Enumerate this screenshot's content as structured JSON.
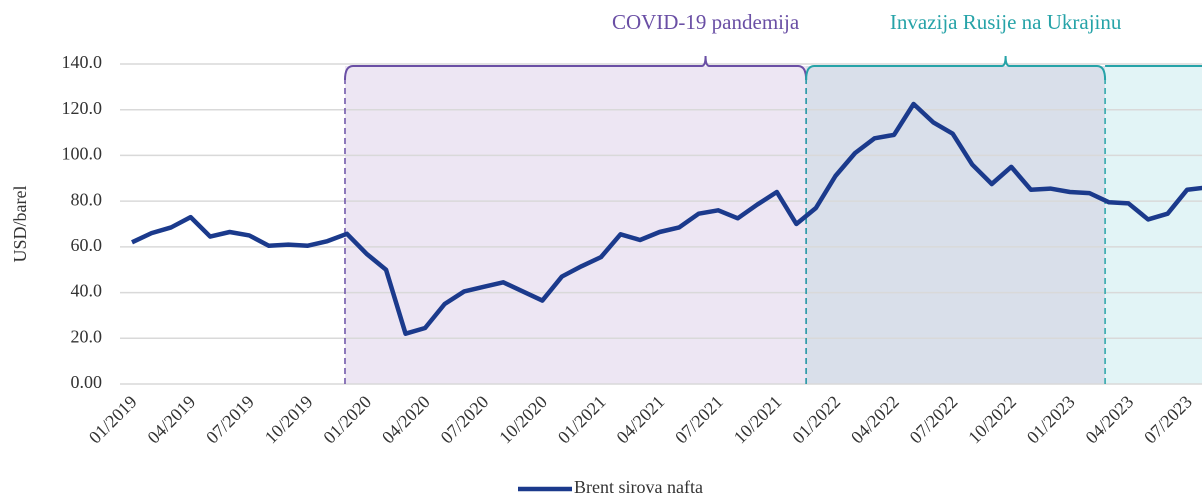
{
  "chart_data": {
    "type": "line",
    "y_label": "USD/barel",
    "categories": [
      "01/2019",
      null,
      null,
      "04/2019",
      null,
      null,
      "07/2019",
      null,
      null,
      "10/2019",
      null,
      null,
      "01/2020",
      null,
      null,
      "04/2020",
      null,
      null,
      "07/2020",
      null,
      null,
      "10/2020",
      null,
      null,
      "01/2021",
      null,
      null,
      "04/2021",
      null,
      null,
      "07/2021",
      null,
      null,
      "10/2021",
      null,
      null,
      "01/2022",
      null,
      null,
      "04/2022",
      null,
      null,
      "07/2022",
      null,
      null,
      "10/2022",
      null,
      null,
      "01/2023",
      null,
      null,
      "04/2023",
      null,
      null,
      "07/2023",
      null
    ],
    "series": [
      {
        "name": "Brent sirova nafta",
        "color": "#1b3a8c",
        "values": [
          62,
          66,
          68.5,
          73,
          64.5,
          66.5,
          65,
          60.5,
          61,
          60.5,
          62.5,
          65.7,
          57,
          50,
          22,
          24.5,
          35,
          40.5,
          42.5,
          44.5,
          40.5,
          36.5,
          47,
          51.5,
          55.5,
          65.5,
          63,
          66.5,
          68.5,
          74.5,
          76,
          72.5,
          78.5,
          84,
          70,
          77,
          91,
          101,
          107.5,
          109,
          122.5,
          114.5,
          109.5,
          96,
          87.5,
          95,
          85,
          85.5,
          84,
          83.5,
          79.5,
          79,
          72,
          74.5,
          85,
          86
        ]
      }
    ],
    "ylim": [
      0,
      140
    ],
    "yticks": [
      {
        "value": 0,
        "label": "0.00"
      },
      {
        "value": 20,
        "label": "20.0"
      },
      {
        "value": 40,
        "label": "40.0"
      },
      {
        "value": 60,
        "label": "60.0"
      },
      {
        "value": 80,
        "label": "80.0"
      },
      {
        "value": 100,
        "label": "100.0"
      },
      {
        "value": 120,
        "label": "120.0"
      },
      {
        "value": 140,
        "label": "140.0"
      }
    ],
    "grid": true,
    "annotations": [
      {
        "text": "COVID-19 pandemija",
        "start": 10.9,
        "end": 34.5,
        "color": "#6a4fa5",
        "fill": "#ede6f3"
      },
      {
        "text": "Invazija Rusije na Ukrajinu",
        "start": 34.5,
        "end": 49.8,
        "color": "#26a3a8",
        "fill": "#d9dfea",
        "after_fill": "#e2f4f6"
      }
    ]
  }
}
